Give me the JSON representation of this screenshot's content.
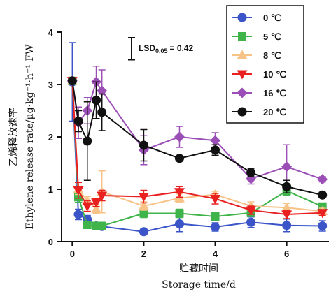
{
  "chart_data": {
    "type": "line",
    "xlabel_cn": "贮藏时间",
    "xlabel_en": "Storage time/d",
    "ylabel_cn": "乙烯释放速率",
    "ylabel_en": "Ethylene release rate/μg·kg⁻¹·h⁻¹ FW",
    "xlim": [
      -0.3,
      7.3
    ],
    "ylim": [
      0,
      4
    ],
    "xticks": [
      "0",
      "2",
      "4",
      "6"
    ],
    "yticks": [
      "0",
      "1",
      "2",
      "3",
      "4"
    ],
    "lsd_label": "LSD",
    "lsd_sub": "0.05",
    "lsd_value": "= 0.42",
    "lsd_span": 0.42,
    "legend_position": "top-right",
    "grid": false,
    "series": [
      {
        "name": "0 ℃",
        "color": "#3b55c8",
        "marker": "circle",
        "x": [
          0,
          0.17,
          0.42,
          0.67,
          0.83,
          2,
          3,
          4,
          5,
          6,
          7
        ],
        "y": [
          3.05,
          0.52,
          0.42,
          0.3,
          0.29,
          0.19,
          0.34,
          0.28,
          0.37,
          0.31,
          0.3
        ],
        "err": [
          0.75,
          0.1,
          0.08,
          0.06,
          0.05,
          0.05,
          0.15,
          0.08,
          0.1,
          0.12,
          0.1
        ]
      },
      {
        "name": "5 ℃",
        "color": "#3fb44a",
        "marker": "square",
        "x": [
          0,
          0.17,
          0.42,
          0.67,
          0.83,
          2,
          3,
          4,
          5,
          6,
          7
        ],
        "y": [
          3.07,
          0.85,
          0.32,
          0.3,
          0.3,
          0.54,
          0.54,
          0.48,
          0.55,
          0.97,
          0.67
        ],
        "err": [
          0.05,
          0.1,
          0.05,
          0.05,
          0.05,
          0.08,
          0.08,
          0.06,
          0.05,
          0.08,
          0.06
        ]
      },
      {
        "name": "8 ℃",
        "color": "#f7c388",
        "marker": "triangle-up",
        "x": [
          0,
          0.17,
          0.42,
          0.67,
          0.83,
          2,
          3,
          4,
          5,
          6,
          7
        ],
        "y": [
          3.07,
          1.0,
          0.78,
          0.62,
          0.95,
          0.68,
          0.83,
          0.9,
          0.68,
          0.65,
          0.58
        ],
        "err": [
          0.05,
          0.1,
          0.08,
          0.08,
          0.4,
          0.08,
          0.08,
          0.06,
          0.08,
          0.08,
          0.06
        ]
      },
      {
        "name": "10 ℃",
        "color": "#e8201f",
        "marker": "triangle-down",
        "x": [
          0,
          0.17,
          0.42,
          0.67,
          0.83,
          2,
          3,
          4,
          5,
          6,
          7
        ],
        "y": [
          3.07,
          0.98,
          0.68,
          0.75,
          0.88,
          0.86,
          0.95,
          0.82,
          0.6,
          0.52,
          0.55
        ],
        "err": [
          0.05,
          0.15,
          0.1,
          0.08,
          0.1,
          0.12,
          0.1,
          0.1,
          0.08,
          0.08,
          0.05
        ]
      },
      {
        "name": "16 ℃",
        "color": "#9b4fb6",
        "marker": "diamond",
        "x": [
          0,
          0.17,
          0.42,
          0.67,
          0.83,
          2,
          3,
          4,
          5,
          6,
          7
        ],
        "y": [
          3.07,
          2.27,
          2.5,
          3.05,
          2.88,
          1.75,
          2.0,
          1.93,
          1.2,
          1.43,
          1.19
        ],
        "err": [
          0.05,
          0.3,
          0.25,
          0.3,
          0.4,
          0.28,
          0.2,
          0.15,
          0.1,
          0.42,
          0.05
        ]
      },
      {
        "name": "20 ℃",
        "color": "#111111",
        "marker": "circle",
        "x": [
          0,
          0.17,
          0.42,
          0.67,
          0.83,
          2,
          3,
          4,
          5,
          6,
          7
        ],
        "y": [
          3.07,
          2.3,
          1.92,
          2.7,
          2.47,
          1.84,
          1.59,
          1.75,
          1.32,
          1.05,
          0.89
        ],
        "err": [
          0.05,
          0.2,
          0.75,
          0.35,
          0.35,
          0.3,
          0.05,
          0.1,
          0.08,
          0.12,
          0.05
        ]
      }
    ]
  }
}
